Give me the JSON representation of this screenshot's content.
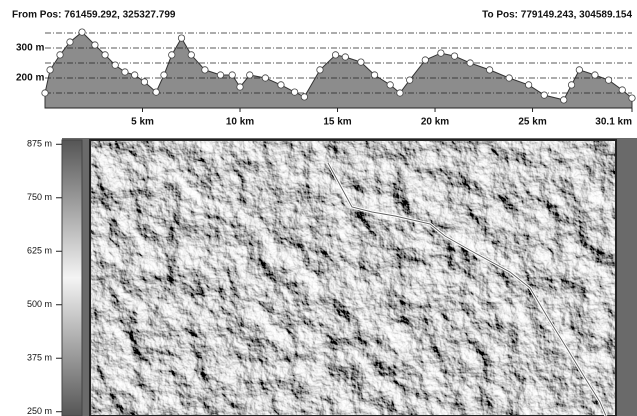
{
  "chart_data": [
    {
      "type": "area",
      "from_label": "From Pos: 761459.292, 325327.799",
      "to_label": "To Pos: 779149.243, 304589.154",
      "x": [
        0,
        0.26,
        0.77,
        1.28,
        1.9,
        2.56,
        3.08,
        3.6,
        4.1,
        4.6,
        5.1,
        5.7,
        6.1,
        6.5,
        7.0,
        7.5,
        8.2,
        9.0,
        9.6,
        10.0,
        10.5,
        11.3,
        12.1,
        12.8,
        13.3,
        14.1,
        14.9,
        15.4,
        16.2,
        16.9,
        17.7,
        18.2,
        18.7,
        19.5,
        20.3,
        21.0,
        21.8,
        22.8,
        23.8,
        24.8,
        25.6,
        26.6,
        27.0,
        27.4,
        28.2,
        28.9,
        29.6,
        30.1
      ],
      "values": [
        150,
        227,
        277,
        320,
        353,
        310,
        277,
        243,
        220,
        210,
        187,
        153,
        210,
        277,
        333,
        277,
        227,
        210,
        210,
        170,
        210,
        200,
        177,
        153,
        137,
        227,
        277,
        270,
        253,
        210,
        177,
        150,
        193,
        260,
        283,
        273,
        250,
        227,
        200,
        177,
        143,
        127,
        177,
        227,
        210,
        193,
        160,
        133
      ],
      "color": "#8c8c8c",
      "markers": true,
      "xlim": [
        0,
        30.1
      ],
      "xticks": [
        {
          "value": 5,
          "label": "5 km"
        },
        {
          "value": 10,
          "label": "10 km"
        },
        {
          "value": 15,
          "label": "15 km"
        },
        {
          "value": 20,
          "label": "20 km"
        },
        {
          "value": 25,
          "label": "25 km"
        },
        {
          "value": 30.1,
          "label": "30.1 km"
        }
      ],
      "ylim": [
        100,
        380
      ],
      "yticks": [
        {
          "value": 200,
          "label": "200 m"
        },
        {
          "value": 300,
          "label": "300 m"
        }
      ],
      "minor_gridlines": [
        150,
        250,
        350
      ],
      "grid": true
    },
    {
      "type": "colorbar",
      "ylim": [
        240,
        885
      ],
      "yticks": [
        {
          "value": 875,
          "label": "875 m"
        },
        {
          "value": 750,
          "label": "750 m"
        },
        {
          "value": 625,
          "label": "625 m"
        },
        {
          "value": 500,
          "label": "500 m"
        },
        {
          "value": 375,
          "label": "375 m"
        },
        {
          "value": 250,
          "label": "250 m"
        }
      ]
    }
  ]
}
